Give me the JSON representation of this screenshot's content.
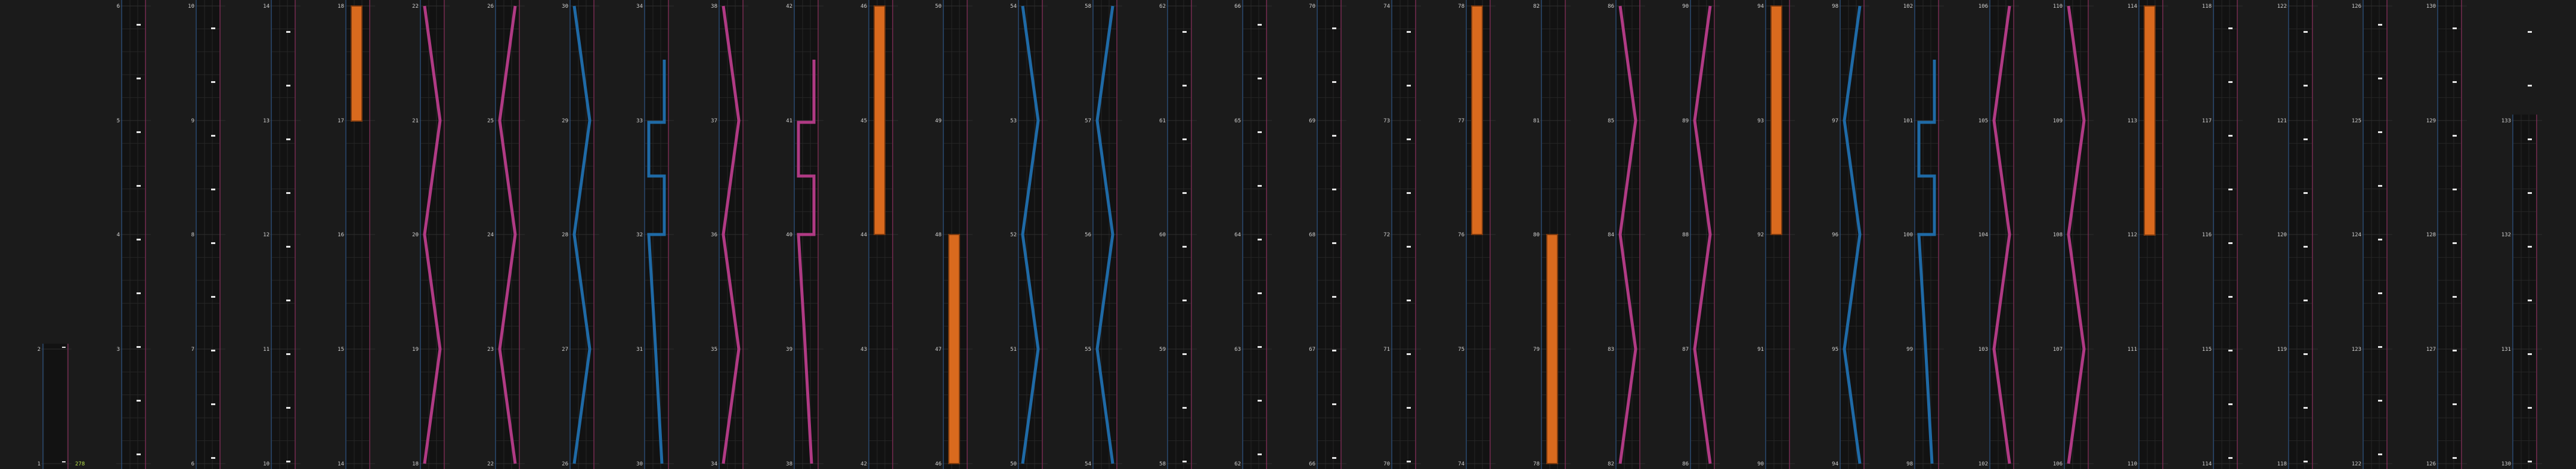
{
  "timeline": {
    "step_label": "278",
    "lane_count": 34,
    "row_count": 5,
    "colors": {
      "background": "#1b1b1b",
      "column_bg": "#121212",
      "grid": "#2e2e2e",
      "grid_minor": "#262626",
      "guide_blue": "#2f5f9a",
      "guide_pink": "#a0306a",
      "bar_orange": "#d96a1e",
      "wave_pink": "#b03a84",
      "wave_blue": "#1f6aa6",
      "marker": "#e6e6e6",
      "step_label": "#b6e04a"
    },
    "columns": [
      {
        "labels": [
          "6",
          "5",
          "4",
          "3"
        ]
      },
      {
        "labels": [
          "10",
          "9",
          "8",
          "7",
          "6"
        ]
      },
      {
        "labels": [
          "14",
          "13",
          "12",
          "11",
          "10"
        ]
      },
      {
        "labels": [
          "18",
          "17",
          "16",
          "15",
          "14"
        ]
      },
      {
        "labels": [
          "22",
          "21",
          "20",
          "19",
          "18"
        ]
      },
      {
        "labels": [
          "26",
          "25",
          "24",
          "23",
          "22"
        ]
      },
      {
        "labels": [
          "30",
          "29",
          "28",
          "27",
          "26"
        ]
      },
      {
        "labels": [
          "34",
          "33",
          "32",
          "31",
          "30"
        ]
      },
      {
        "labels": [
          "38",
          "37",
          "36",
          "35",
          "34"
        ]
      },
      {
        "labels": [
          "42",
          "41",
          "40",
          "39",
          "38"
        ]
      },
      {
        "labels": [
          "46",
          "45",
          "44",
          "43",
          "42"
        ]
      },
      {
        "labels": [
          "50",
          "49",
          "48",
          "47",
          "46"
        ]
      },
      {
        "labels": [
          "54",
          "53",
          "52",
          "51",
          "50"
        ]
      },
      {
        "labels": [
          "58",
          "57",
          "56",
          "55",
          "54"
        ]
      },
      {
        "labels": [
          "62",
          "61",
          "60",
          "59",
          "58"
        ]
      },
      {
        "labels": [
          "66",
          "65",
          "64",
          "63",
          "62"
        ]
      },
      {
        "labels": [
          "70",
          "69",
          "68",
          "67",
          "66"
        ]
      },
      {
        "labels": [
          "74",
          "73",
          "72",
          "71",
          "70"
        ]
      },
      {
        "labels": [
          "78",
          "77",
          "76",
          "75",
          "74"
        ]
      },
      {
        "labels": [
          "82",
          "81",
          "80",
          "79",
          "78"
        ]
      },
      {
        "labels": [
          "86",
          "85",
          "84",
          "83",
          "82"
        ]
      },
      {
        "labels": [
          "90",
          "89",
          "88",
          "87",
          "86"
        ]
      },
      {
        "labels": [
          "94",
          "93",
          "92",
          "91",
          "90"
        ]
      },
      {
        "labels": [
          "98",
          "97",
          "96",
          "95",
          "94"
        ]
      },
      {
        "labels": [
          "102",
          "101",
          "100",
          "99",
          "98"
        ]
      },
      {
        "labels": [
          "106",
          "105",
          "104",
          "103",
          "102"
        ]
      },
      {
        "labels": [
          "110",
          "109",
          "108",
          "107",
          "106"
        ]
      },
      {
        "labels": [
          "114",
          "113",
          "112",
          "111",
          "110"
        ]
      },
      {
        "labels": [
          "118",
          "117",
          "116",
          "115",
          "114"
        ]
      },
      {
        "labels": [
          "122",
          "121",
          "120",
          "119",
          "118"
        ]
      },
      {
        "labels": [
          "126",
          "125",
          "124",
          "123",
          "122"
        ]
      },
      {
        "labels": [
          "130",
          "129",
          "128",
          "127",
          "126"
        ]
      },
      {
        "labels": [
          "",
          "133",
          "132",
          "131",
          "130"
        ]
      }
    ],
    "first_column": {
      "labels": [
        "2",
        "1"
      ]
    }
  }
}
